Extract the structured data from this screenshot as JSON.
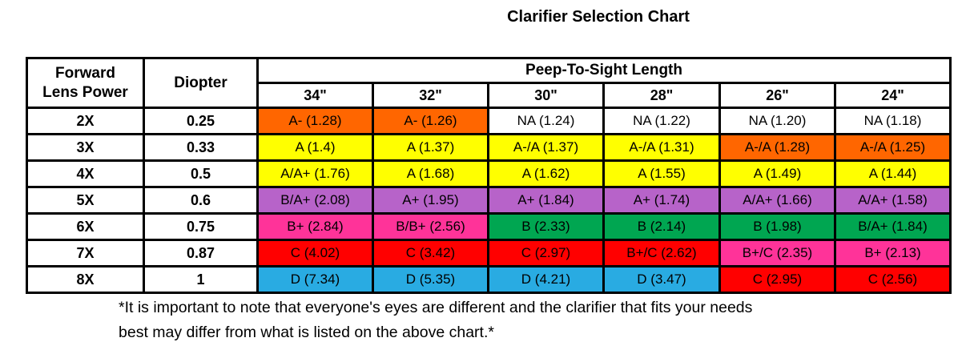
{
  "title": "Clarifier Selection Chart",
  "header": {
    "power_label_lines": [
      "Forward",
      "Lens Power"
    ],
    "diopter_label": "Diopter",
    "group_label": "Peep-To-Sight Length",
    "lengths": [
      "34\"",
      "32\"",
      "30\"",
      "28\"",
      "26\"",
      "24\""
    ]
  },
  "chart_data": {
    "type": "table",
    "title": "Clarifier Selection Chart",
    "column_group_label": "Peep-To-Sight Length",
    "columns": [
      "Forward Lens Power",
      "Diopter",
      "34\"",
      "32\"",
      "30\"",
      "28\"",
      "26\"",
      "24\""
    ],
    "rows": [
      {
        "power": "2X",
        "diopter": "0.25",
        "cells": [
          "A- (1.28)",
          "A- (1.26)",
          "NA (1.24)",
          "NA (1.22)",
          "NA (1.20)",
          "NA (1.18)"
        ],
        "cell_colors": [
          "orange",
          "orange",
          "white",
          "white",
          "white",
          "white"
        ]
      },
      {
        "power": "3X",
        "diopter": "0.33",
        "cells": [
          "A (1.4)",
          "A (1.37)",
          "A-/A (1.37)",
          "A-/A (1.31)",
          "A-/A (1.28)",
          "A-/A (1.25)"
        ],
        "cell_colors": [
          "yellow",
          "yellow",
          "yellow",
          "yellow",
          "orange",
          "orange"
        ]
      },
      {
        "power": "4X",
        "diopter": "0.5",
        "cells": [
          "A/A+ (1.76)",
          "A (1.68)",
          "A (1.62)",
          "A (1.55)",
          "A (1.49)",
          "A (1.44)"
        ],
        "cell_colors": [
          "yellow",
          "yellow",
          "yellow",
          "yellow",
          "yellow",
          "yellow"
        ]
      },
      {
        "power": "5X",
        "diopter": "0.6",
        "cells": [
          "B/A+ (2.08)",
          "A+ (1.95)",
          "A+ (1.84)",
          "A+ (1.74)",
          "A/A+ (1.66)",
          "A/A+ (1.58)"
        ],
        "cell_colors": [
          "purple",
          "purple",
          "purple",
          "purple",
          "purple",
          "purple"
        ]
      },
      {
        "power": "6X",
        "diopter": "0.75",
        "cells": [
          "B+ (2.84)",
          "B/B+ (2.56)",
          "B (2.33)",
          "B (2.14)",
          "B (1.98)",
          "B/A+ (1.84)"
        ],
        "cell_colors": [
          "pink",
          "pink",
          "green",
          "green",
          "green",
          "green"
        ]
      },
      {
        "power": "7X",
        "diopter": "0.87",
        "cells": [
          "C (4.02)",
          "C (3.42)",
          "C (2.97)",
          "B+/C (2.62)",
          "B+/C (2.35)",
          "B+ (2.13)"
        ],
        "cell_colors": [
          "red",
          "red",
          "red",
          "red",
          "pink",
          "pink"
        ]
      },
      {
        "power": "8X",
        "diopter": "1",
        "cells": [
          "D (7.34)",
          "D (5.35)",
          "D (4.21)",
          "D (3.47)",
          "C (2.95)",
          "C (2.56)"
        ],
        "cell_colors": [
          "blue",
          "blue",
          "blue",
          "blue",
          "red",
          "red"
        ]
      }
    ],
    "palette": {
      "white": "#FFFFFF",
      "orange": "#FF6600",
      "yellow": "#FFFF00",
      "purple": "#B763C9",
      "pink": "#FF3399",
      "green": "#00A651",
      "red": "#FF0000",
      "blue": "#29ABE2"
    }
  },
  "footnote": {
    "line1": "*It is important to note that everyone's eyes are different and the clarifier that fits your needs",
    "line2": "best may differ from what is listed on the above chart.*"
  }
}
